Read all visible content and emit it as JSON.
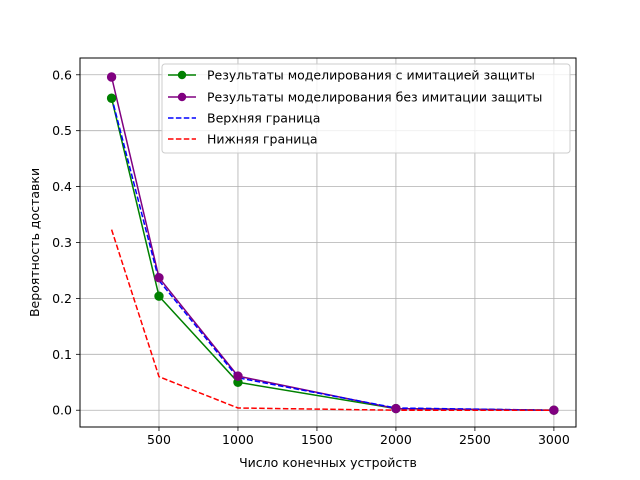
{
  "chart_data": {
    "type": "line",
    "xlabel": "Число конечных устройств",
    "ylabel": "Вероятность доставки",
    "xlim": [
      0,
      3140
    ],
    "ylim": [
      -0.03,
      0.63
    ],
    "x_ticks": [
      500,
      1000,
      1500,
      2000,
      2500,
      3000
    ],
    "y_ticks": [
      0.0,
      0.1,
      0.2,
      0.3,
      0.4,
      0.5,
      0.6
    ],
    "x_tick_labels": [
      "500",
      "1000",
      "1500",
      "2000",
      "2500",
      "3000"
    ],
    "y_tick_labels": [
      "0.0",
      "0.1",
      "0.2",
      "0.3",
      "0.4",
      "0.5",
      "0.6"
    ],
    "grid": true,
    "legend_position": "top-right",
    "series": [
      {
        "name": "Результаты моделирования с имитацией защиты",
        "color": "#008000",
        "style": "solid",
        "marker": "circle",
        "x": [
          200,
          500,
          1000,
          2000,
          3000
        ],
        "y": [
          0.558,
          0.204,
          0.05,
          0.003,
          0.0
        ]
      },
      {
        "name": "Результаты моделирования без имитации защиты",
        "color": "#800080",
        "style": "solid",
        "marker": "circle",
        "x": [
          200,
          500,
          1000,
          2000,
          3000
        ],
        "y": [
          0.596,
          0.237,
          0.061,
          0.003,
          0.0
        ]
      },
      {
        "name": "Верхняя граница",
        "color": "#0000ff",
        "style": "dashed",
        "marker": "none",
        "x": [
          200,
          500,
          1000,
          2000,
          3000
        ],
        "y": [
          0.56,
          0.232,
          0.058,
          0.004,
          0.0
        ]
      },
      {
        "name": "Нижняя граница",
        "color": "#ff0000",
        "style": "dashed",
        "marker": "none",
        "x": [
          200,
          500,
          1000,
          2000,
          3000
        ],
        "y": [
          0.323,
          0.06,
          0.004,
          0.0,
          0.0
        ]
      }
    ]
  }
}
